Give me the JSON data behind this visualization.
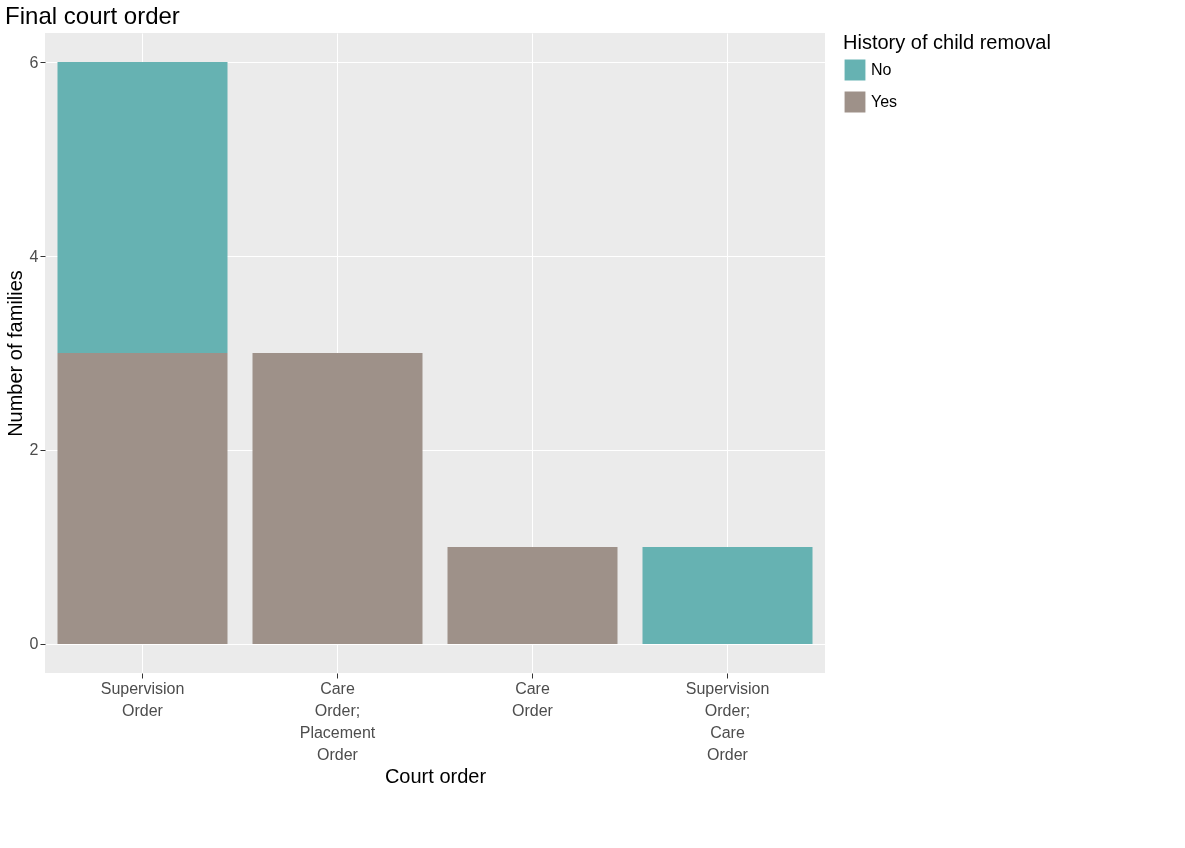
{
  "chart_data": {
    "type": "bar",
    "title": "Final court order",
    "xlabel": "Court order",
    "ylabel": "Number of families",
    "legend_title": "History of child removal",
    "categories": [
      "Supervision Order",
      "Care Order; Placement Order",
      "Care Order",
      "Supervision Order; Care Order"
    ],
    "stacked": true,
    "series": [
      {
        "name": "Yes",
        "color": "#9e9189",
        "values": [
          3,
          3,
          1,
          null
        ]
      },
      {
        "name": "No",
        "color": "#66b2b2",
        "values": [
          3,
          null,
          null,
          1
        ]
      }
    ],
    "ylim": [
      -0.3,
      6.3
    ],
    "yticks": [
      0,
      2,
      4,
      6
    ],
    "grid": true,
    "legend": "right"
  }
}
